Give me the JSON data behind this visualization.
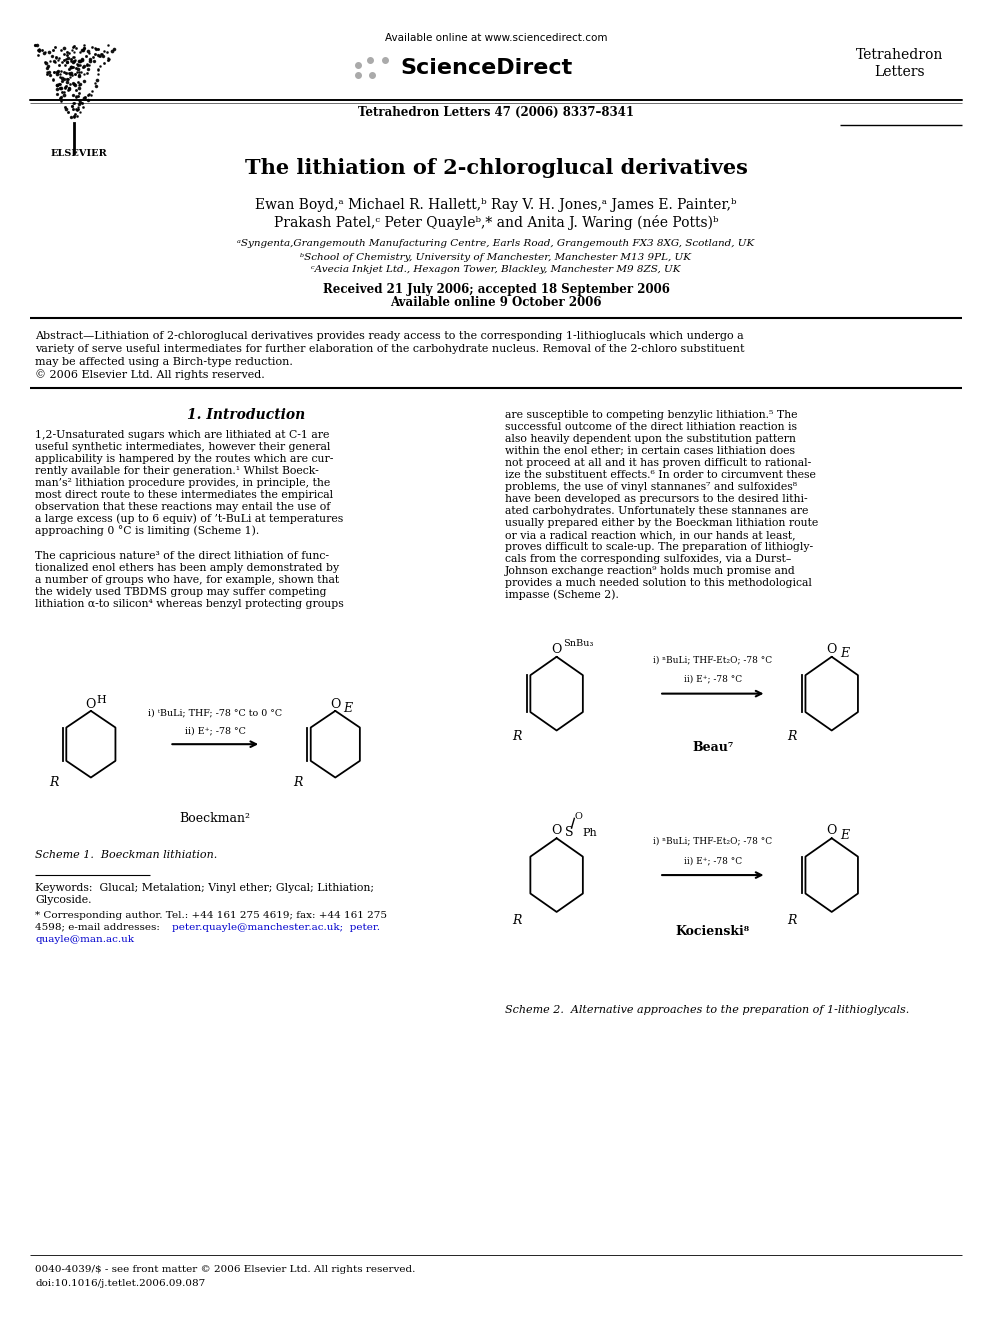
{
  "title": "The lithiation of 2-chloroglucal derivatives",
  "authors_line1": "Ewan Boyd,ᵃ Michael R. Hallett,ᵇ Ray V. H. Jones,ᵃ James E. Painter,ᵇ",
  "authors_line2": "Prakash Patel,ᶜ Peter Quayleᵇ,* and Anita J. Waring (née Potts)ᵇ",
  "affil_a": "ᵃSyngenta,Grangemouth Manufacturing Centre, Earls Road, Grangemouth FX3 8XG, Scotland, UK",
  "affil_b": "ᵇSchool of Chemistry, University of Manchester, Manchester M13 9PL, UK",
  "affil_c": "ᶜAvecia Inkjet Ltd., Hexagon Tower, Blackley, Manchester M9 8ZS, UK",
  "received": "Received 21 July 2006; accepted 18 September 2006",
  "available_online": "Available online 9 October 2006",
  "journal_line": "Tetrahedron Letters 47 (2006) 8337–8341",
  "sciencedirect_url": "Available online at www.sciencedirect.com",
  "journal_name_line1": "Tetrahedron",
  "journal_name_line2": "Letters",
  "elsevier_label": "ELSEVIER",
  "section1_title": "1. Introduction",
  "scheme1_caption": "Scheme 1.  Boeckman lithiation.",
  "scheme2_caption": "Scheme 2.  Alternative approaches to the preparation of 1-lithioglycals.",
  "keywords_line1": "Keywords:  Glucal; Metalation; Vinyl ether; Glycal; Lithiation;",
  "keywords_line2": "Glycoside.",
  "bg_color": "#ffffff",
  "text_color": "#000000",
  "link_color": "#0000cc"
}
